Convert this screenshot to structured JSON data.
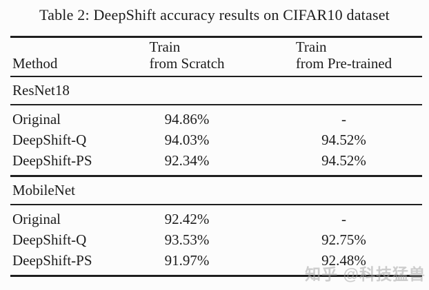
{
  "title": "Table 2: DeepShift accuracy results on CIFAR10 dataset",
  "table": {
    "header": {
      "method": "Method",
      "scratch_line1": "Train",
      "scratch_line2": "from Scratch",
      "pretrained_line1": "Train",
      "pretrained_line2": "from Pre-trained"
    },
    "sections": [
      {
        "name": "ResNet18",
        "rows": [
          {
            "method": "Original",
            "scratch": "94.86%",
            "pretrained": "-"
          },
          {
            "method": "DeepShift-Q",
            "scratch": "94.03%",
            "pretrained": "94.52%"
          },
          {
            "method": "DeepShift-PS",
            "scratch": "92.34%",
            "pretrained": "94.52%"
          }
        ]
      },
      {
        "name": "MobileNet",
        "rows": [
          {
            "method": "Original",
            "scratch": "92.42%",
            "pretrained": "-"
          },
          {
            "method": "DeepShift-Q",
            "scratch": "93.53%",
            "pretrained": "92.75%"
          },
          {
            "method": "DeepShift-PS",
            "scratch": "91.97%",
            "pretrained": "92.48%"
          }
        ]
      }
    ]
  },
  "watermark": "知乎 @科技猛兽",
  "colors": {
    "text": "#1c1c1c",
    "rule": "#1e1e1e",
    "watermark": "#a5a5a5",
    "background": "#fcfcfc"
  }
}
